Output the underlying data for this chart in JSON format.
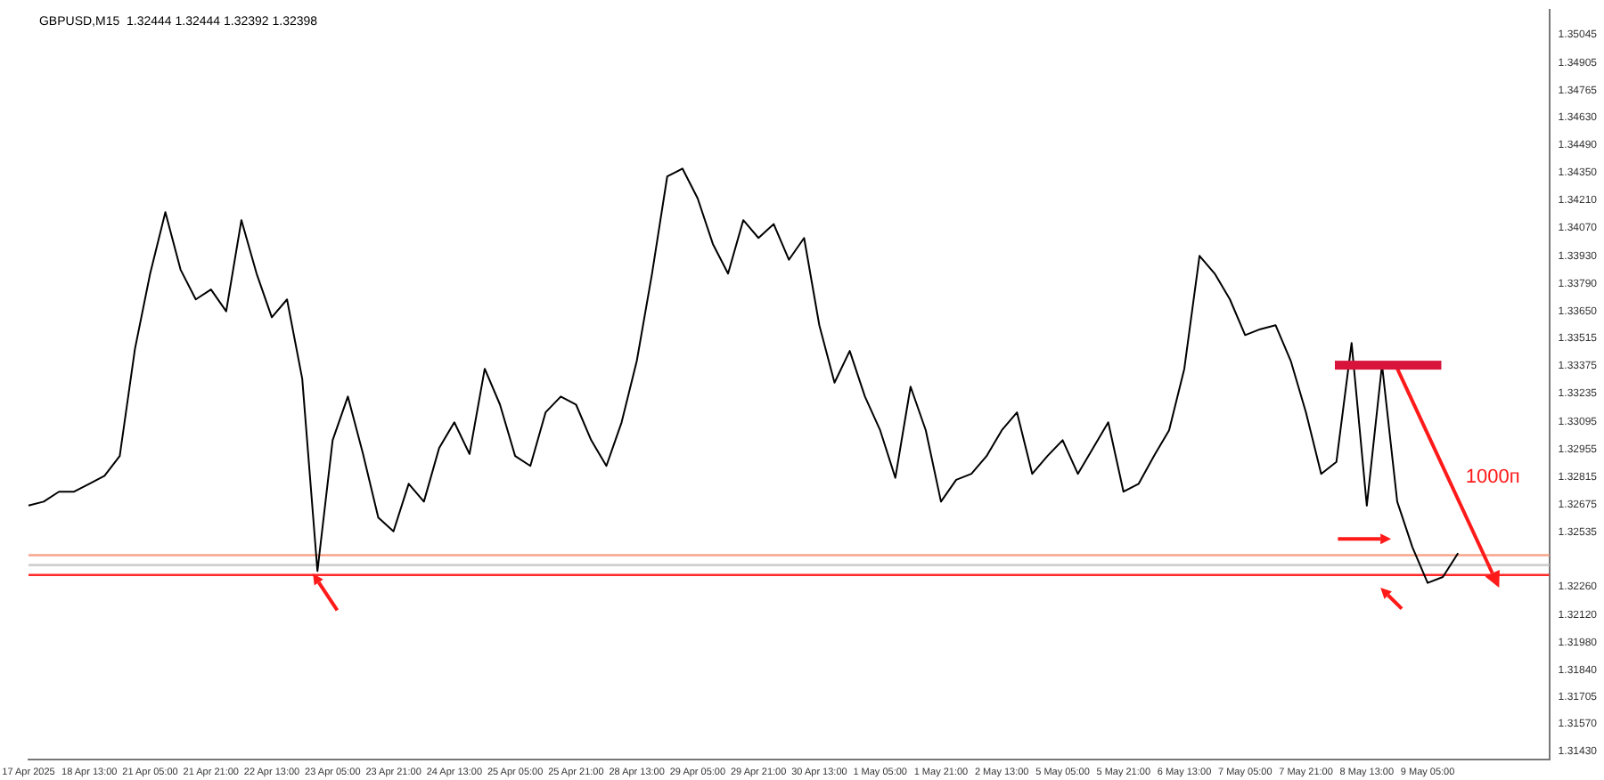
{
  "chart_data": {
    "type": "line",
    "title": "GBPUSD,M15  1.32444 1.32444 1.32392 1.32398",
    "categories": [
      "17 Apr 2025",
      null,
      null,
      null,
      "18 Apr 13:00",
      null,
      null,
      null,
      "21 Apr 05:00",
      null,
      null,
      null,
      "21 Apr 21:00",
      null,
      null,
      null,
      "22 Apr 13:00",
      null,
      null,
      null,
      "23 Apr 05:00",
      null,
      null,
      null,
      "23 Apr 21:00",
      null,
      null,
      null,
      "24 Apr 13:00",
      null,
      null,
      null,
      "25 Apr 05:00",
      null,
      null,
      null,
      "25 Apr 21:00",
      null,
      null,
      null,
      "28 Apr 13:00",
      null,
      null,
      null,
      "29 Apr 05:00",
      null,
      null,
      null,
      "29 Apr 21:00",
      null,
      null,
      null,
      "30 Apr 13:00",
      null,
      null,
      null,
      "1 May 05:00",
      null,
      null,
      null,
      "1 May 21:00",
      null,
      null,
      null,
      "2 May 13:00",
      null,
      null,
      null,
      "5 May 05:00",
      null,
      null,
      null,
      "5 May 21:00",
      null,
      null,
      null,
      "6 May 13:00",
      null,
      null,
      null,
      "7 May 05:00",
      null,
      null,
      null,
      "7 May 21:00",
      null,
      null,
      null,
      "8 May 13:00",
      null,
      null,
      null,
      "9 May 05:00",
      null,
      null,
      null,
      null,
      null,
      null,
      null,
      null
    ],
    "series": [
      {
        "color": "#000000",
        "values": [
          1.3267,
          1.3269,
          1.3274,
          1.3274,
          1.3278,
          1.3282,
          1.3292,
          1.3346,
          1.3384,
          1.3415,
          1.3386,
          1.3371,
          1.3376,
          1.3365,
          1.3411,
          1.3384,
          1.3362,
          1.3371,
          1.3331,
          1.3234,
          1.33,
          1.3322,
          1.3293,
          1.3261,
          1.3254,
          1.3278,
          1.3269,
          1.3296,
          1.3309,
          1.3293,
          1.3336,
          1.3318,
          1.3292,
          1.3287,
          1.3314,
          1.3322,
          1.3318,
          1.33,
          1.3287,
          1.3309,
          1.334,
          1.3384,
          1.3433,
          1.3437,
          1.3422,
          1.3399,
          1.3384,
          1.3411,
          1.3402,
          1.3409,
          1.3391,
          1.3402,
          1.3358,
          1.3329,
          1.3345,
          1.3322,
          1.3305,
          1.3281,
          1.3327,
          1.3305,
          1.3269,
          1.328,
          1.3283,
          1.3292,
          1.3305,
          1.3314,
          1.3283,
          1.3292,
          1.33,
          1.3283,
          1.3296,
          1.3309,
          1.3274,
          1.3278,
          1.3292,
          1.3305,
          1.3336,
          1.3393,
          1.3384,
          1.3371,
          1.3353,
          1.3356,
          1.3358,
          1.334,
          1.3314,
          1.3283,
          1.3289,
          1.3349,
          1.3267,
          1.3338,
          1.3269,
          1.3246,
          1.3228,
          1.3231,
          1.3243,
          null,
          null,
          null,
          null,
          null,
          null
        ]
      }
    ],
    "ylim": [
      1.3139,
      1.3517
    ],
    "yticks": [
      {
        "value": 1.3143,
        "label": "1.31430"
      },
      {
        "value": 1.3157,
        "label": "1.31570"
      },
      {
        "value": 1.31705,
        "label": "1.31705"
      },
      {
        "value": 1.3184,
        "label": "1.31840"
      },
      {
        "value": 1.3198,
        "label": "1.31980"
      },
      {
        "value": 1.3212,
        "label": "1.32120"
      },
      {
        "value": 1.3226,
        "label": "1.32260"
      },
      {
        "value": 1.32535,
        "label": "1.32535"
      },
      {
        "value": 1.32675,
        "label": "1.32675"
      },
      {
        "value": 1.32815,
        "label": "1.32815"
      },
      {
        "value": 1.32955,
        "label": "1.32955"
      },
      {
        "value": 1.33095,
        "label": "1.33095"
      },
      {
        "value": 1.33235,
        "label": "1.33235"
      },
      {
        "value": 1.33375,
        "label": "1.33375"
      },
      {
        "value": 1.33515,
        "label": "1.33515"
      },
      {
        "value": 1.3365,
        "label": "1.33650"
      },
      {
        "value": 1.3379,
        "label": "1.33790"
      },
      {
        "value": 1.3393,
        "label": "1.33930"
      },
      {
        "value": 1.3407,
        "label": "1.34070"
      },
      {
        "value": 1.3421,
        "label": "1.34210"
      },
      {
        "value": 1.3435,
        "label": "1.34350"
      },
      {
        "value": 1.3449,
        "label": "1.34490"
      },
      {
        "value": 1.3463,
        "label": "1.34630"
      },
      {
        "value": 1.34765,
        "label": "1.34765"
      },
      {
        "value": 1.34905,
        "label": "1.34905"
      },
      {
        "value": 1.35045,
        "label": "1.35045"
      }
    ],
    "ref_lines": [
      {
        "axis": "y",
        "value": 1.3242,
        "color": "#f7a48a"
      },
      {
        "axis": "y",
        "value": 1.3237,
        "color": "#cfcfcf"
      },
      {
        "axis": "y",
        "value": 1.3232,
        "color": "#ff2a2a"
      }
    ],
    "annotations": [
      "1000п"
    ],
    "marker": "none",
    "line_style": "solid"
  }
}
